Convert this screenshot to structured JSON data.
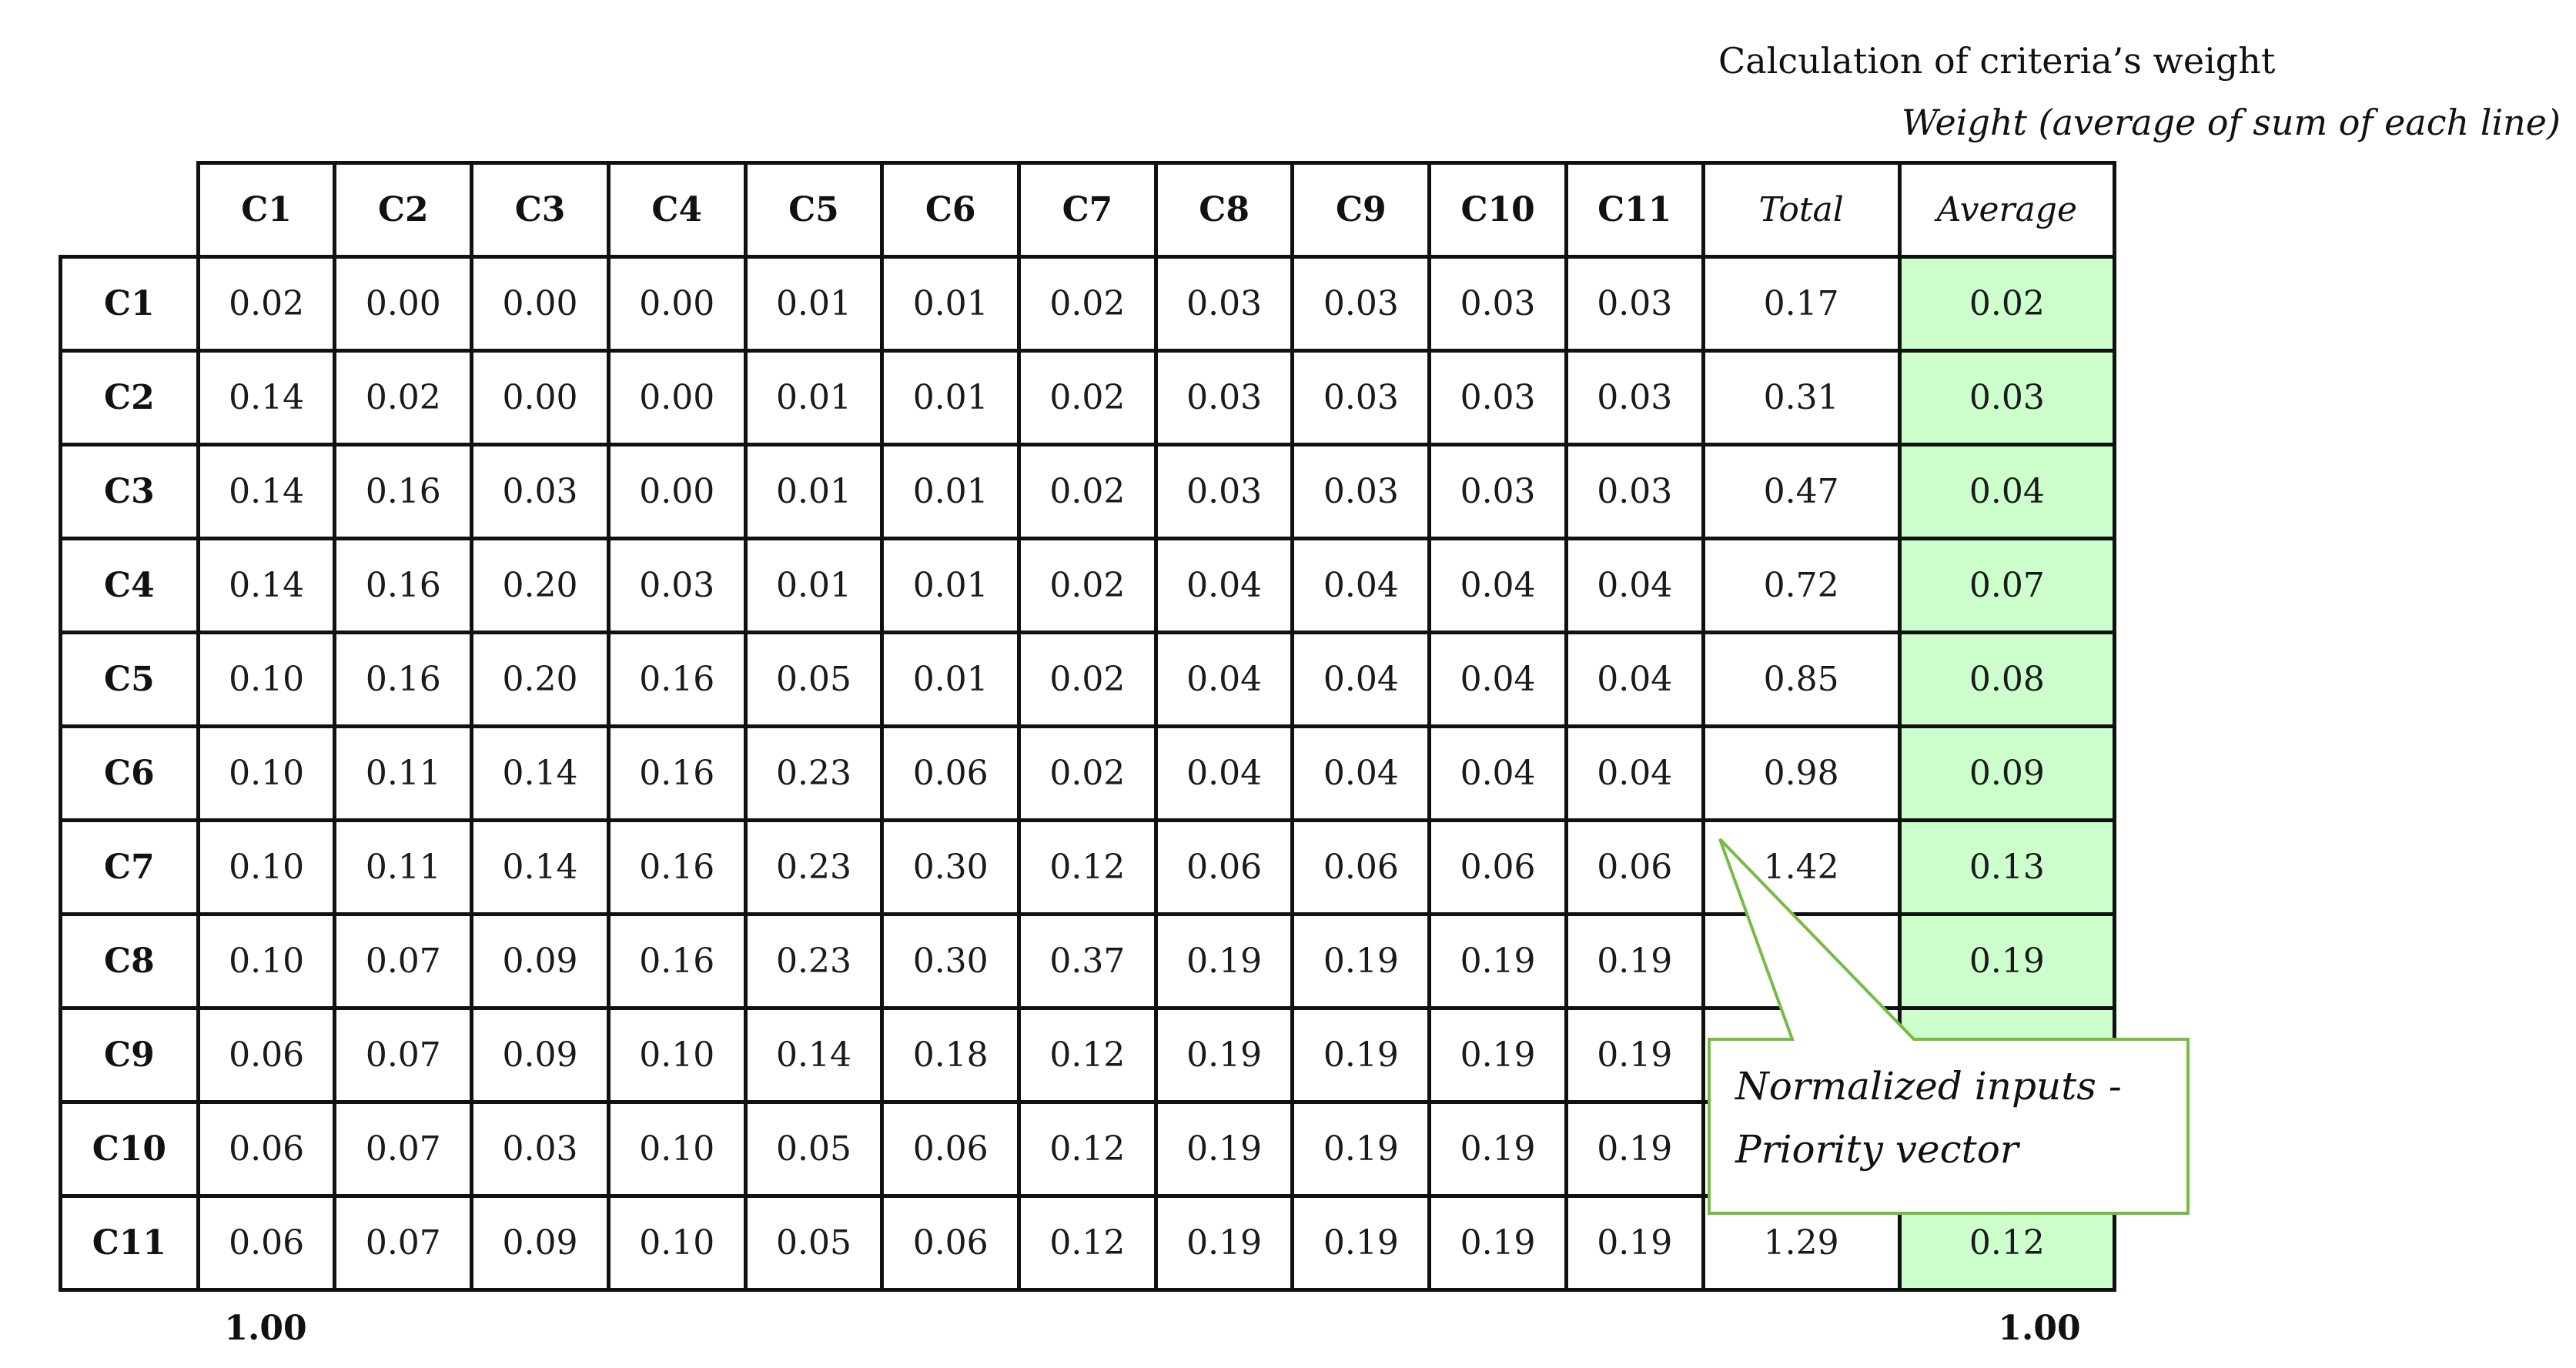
{
  "captions": {
    "title": "Calculation of criteria’s weight",
    "subtitle": "Weight (average of sum of each line)"
  },
  "table": {
    "columns": [
      "C1",
      "C2",
      "C3",
      "C4",
      "C5",
      "C6",
      "C7",
      "C8",
      "C9",
      "C10",
      "C11"
    ],
    "total_label": "Total",
    "average_label": "Average",
    "rows": [
      {
        "label": "C1",
        "values": [
          "0.02",
          "0.00",
          "0.00",
          "0.00",
          "0.01",
          "0.01",
          "0.02",
          "0.03",
          "0.03",
          "0.03",
          "0.03"
        ],
        "total": "0.17",
        "average": "0.02"
      },
      {
        "label": "C2",
        "values": [
          "0.14",
          "0.02",
          "0.00",
          "0.00",
          "0.01",
          "0.01",
          "0.02",
          "0.03",
          "0.03",
          "0.03",
          "0.03"
        ],
        "total": "0.31",
        "average": "0.03"
      },
      {
        "label": "C3",
        "values": [
          "0.14",
          "0.16",
          "0.03",
          "0.00",
          "0.01",
          "0.01",
          "0.02",
          "0.03",
          "0.03",
          "0.03",
          "0.03"
        ],
        "total": "0.47",
        "average": "0.04"
      },
      {
        "label": "C4",
        "values": [
          "0.14",
          "0.16",
          "0.20",
          "0.03",
          "0.01",
          "0.01",
          "0.02",
          "0.04",
          "0.04",
          "0.04",
          "0.04"
        ],
        "total": "0.72",
        "average": "0.07"
      },
      {
        "label": "C5",
        "values": [
          "0.10",
          "0.16",
          "0.20",
          "0.16",
          "0.05",
          "0.01",
          "0.02",
          "0.04",
          "0.04",
          "0.04",
          "0.04"
        ],
        "total": "0.85",
        "average": "0.08"
      },
      {
        "label": "C6",
        "values": [
          "0.10",
          "0.11",
          "0.14",
          "0.16",
          "0.23",
          "0.06",
          "0.02",
          "0.04",
          "0.04",
          "0.04",
          "0.04"
        ],
        "total": "0.98",
        "average": "0.09"
      },
      {
        "label": "C7",
        "values": [
          "0.10",
          "0.11",
          "0.14",
          "0.16",
          "0.23",
          "0.30",
          "0.12",
          "0.06",
          "0.06",
          "0.06",
          "0.06"
        ],
        "total": "1.42",
        "average": "0.13"
      },
      {
        "label": "C8",
        "values": [
          "0.10",
          "0.07",
          "0.09",
          "0.16",
          "0.23",
          "0.30",
          "0.37",
          "0.19",
          "0.19",
          "0.19",
          "0.19"
        ],
        "total": "",
        "average": "0.19"
      },
      {
        "label": "C9",
        "values": [
          "0.06",
          "0.07",
          "0.09",
          "0.10",
          "0.14",
          "0.18",
          "0.12",
          "0.19",
          "0.19",
          "0.19",
          "0.19"
        ],
        "total": "",
        "average": ""
      },
      {
        "label": "C10",
        "values": [
          "0.06",
          "0.07",
          "0.03",
          "0.10",
          "0.05",
          "0.06",
          "0.12",
          "0.19",
          "0.19",
          "0.19",
          "0.19"
        ],
        "total": "",
        "average": ""
      },
      {
        "label": "C11",
        "values": [
          "0.06",
          "0.07",
          "0.09",
          "0.10",
          "0.05",
          "0.06",
          "0.12",
          "0.19",
          "0.19",
          "0.19",
          "0.19"
        ],
        "total": "1.29",
        "average": "0.12"
      }
    ]
  },
  "footer": {
    "left_sum": "1.00",
    "right_sum": "1.00"
  },
  "callout": {
    "line1": "Normalized inputs -",
    "line2": "Priority vector",
    "border_color": "#77bb44"
  },
  "colors": {
    "average_fill": "#ccffcc"
  }
}
